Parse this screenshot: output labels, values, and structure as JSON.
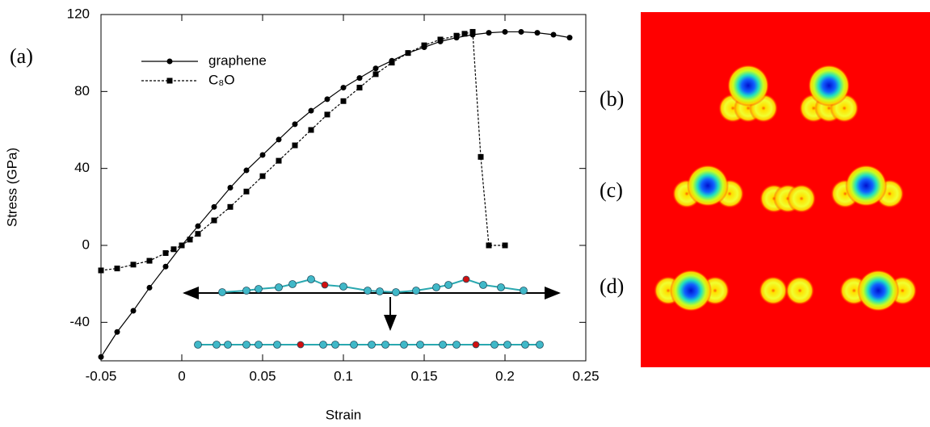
{
  "chart_data": {
    "type": "line",
    "xlabel": "Strain",
    "ylabel": "Stress (GPa)",
    "annotations": [
      "(a)",
      "(b)",
      "(c)",
      "(d)"
    ],
    "xlim": [
      -0.05,
      0.25
    ],
    "ylim": [
      -60,
      120
    ],
    "xticks": [
      -0.05,
      0,
      0.05,
      0.1,
      0.15,
      0.2,
      0.25
    ],
    "yticks": [
      -40,
      0,
      40,
      80,
      120
    ],
    "grid": false,
    "legend": "upper left",
    "series": [
      {
        "name": "graphene",
        "color": "#000000",
        "marker": "circle",
        "linestyle": "solid",
        "x": [
          -0.05,
          -0.04,
          -0.03,
          -0.02,
          -0.01,
          0,
          0.01,
          0.02,
          0.03,
          0.04,
          0.05,
          0.06,
          0.07,
          0.08,
          0.09,
          0.1,
          0.11,
          0.12,
          0.13,
          0.14,
          0.15,
          0.16,
          0.17,
          0.18,
          0.19,
          0.2,
          0.21,
          0.22,
          0.23,
          0.24
        ],
        "values": [
          -58,
          -45,
          -34,
          -22,
          -11,
          0,
          10,
          20,
          30,
          39,
          47,
          55,
          63,
          70,
          76,
          82,
          87,
          92,
          96,
          100,
          103,
          106,
          108,
          109.5,
          110.5,
          111,
          111,
          110.5,
          109.5,
          108
        ]
      },
      {
        "name": "C₈O",
        "color": "#000000",
        "marker": "square",
        "linestyle": "dashed",
        "x": [
          -0.05,
          -0.04,
          -0.03,
          -0.02,
          -0.01,
          -0.005,
          0,
          0.005,
          0.01,
          0.02,
          0.03,
          0.04,
          0.05,
          0.06,
          0.07,
          0.08,
          0.09,
          0.1,
          0.11,
          0.12,
          0.13,
          0.14,
          0.15,
          0.16,
          0.17,
          0.175,
          0.18,
          0.185,
          0.19,
          0.2
        ],
        "values": [
          -13,
          -12,
          -10,
          -8,
          -4,
          -2,
          0,
          3,
          6,
          13,
          20,
          28,
          36,
          44,
          52,
          60,
          68,
          75,
          82,
          89,
          95,
          100,
          104,
          107,
          109,
          110,
          111,
          46,
          0,
          0
        ]
      }
    ]
  }
}
